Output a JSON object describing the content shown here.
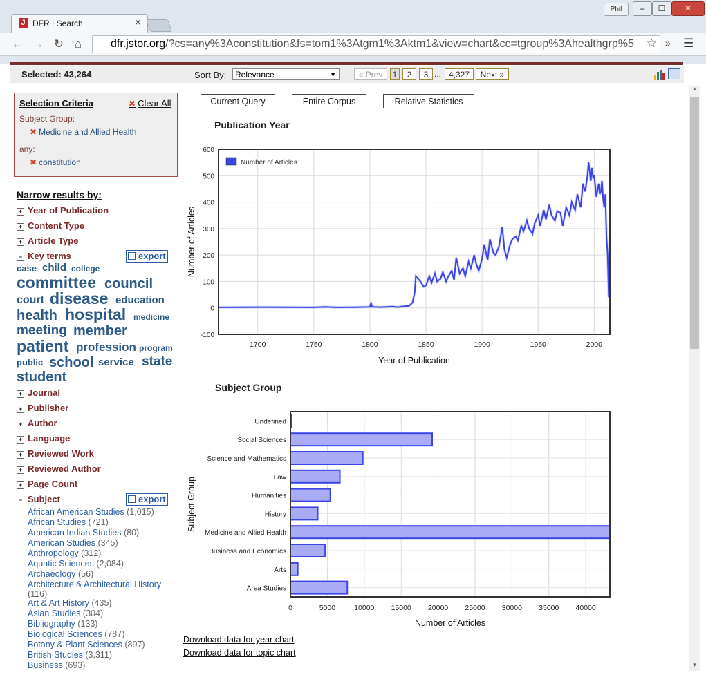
{
  "browser": {
    "tab_favicon": "J",
    "tab_title": "DFR : Search",
    "user_badge": "Phil",
    "url_host": "dfr.jstor.org",
    "url_rest": "/?cs=any%3Aconstitution&fs=tom1%3Atgm1%3Aktm1&view=chart&cc=tgroup%3Ahealthgrp%5",
    "extensions_label": "»",
    "icons": {
      "back": "arrow-left-icon",
      "forward": "arrow-right-icon",
      "reload": "reload-icon",
      "home": "home-icon",
      "star": "star-icon",
      "menu": "hamburger-icon"
    }
  },
  "header": {
    "selected_label": "Selected: 43,264",
    "sort_label": "Sort By:",
    "sort_value": "Relevance",
    "pagination": {
      "prev": "« Prev",
      "pages": [
        "1",
        "2",
        "3"
      ],
      "ellipsis": "...",
      "last": "4,327",
      "next": "Next »"
    }
  },
  "criteria": {
    "title": "Selection Criteria",
    "clear_all": "Clear All",
    "items": [
      {
        "label": "Subject Group:",
        "value": "Medicine and Allied Health"
      },
      {
        "label": "any:",
        "value": "constitution"
      }
    ]
  },
  "narrow": {
    "title": "Narrow results by:",
    "facets_top": [
      "Year of Publication",
      "Content Type",
      "Article Type"
    ],
    "key_terms": "Key terms",
    "export_label": "export",
    "keywords": [
      {
        "text": "case",
        "size": 13
      },
      {
        "text": "child",
        "size": 15
      },
      {
        "text": "college",
        "size": 12
      },
      {
        "text": "committee",
        "size": 23
      },
      {
        "text": "council",
        "size": 20
      },
      {
        "text": "court",
        "size": 16
      },
      {
        "text": "disease",
        "size": 23
      },
      {
        "text": "education",
        "size": 15
      },
      {
        "text": "health",
        "size": 20
      },
      {
        "text": "hospital",
        "size": 23
      },
      {
        "text": "medicine",
        "size": 12
      },
      {
        "text": "meeting",
        "size": 19
      },
      {
        "text": "member",
        "size": 20
      },
      {
        "text": "patient",
        "size": 23
      },
      {
        "text": "profession",
        "size": 17
      },
      {
        "text": "program",
        "size": 12
      },
      {
        "text": "public",
        "size": 13
      },
      {
        "text": "school",
        "size": 20
      },
      {
        "text": "service",
        "size": 15
      },
      {
        "text": "state",
        "size": 19
      },
      {
        "text": "student",
        "size": 20
      }
    ],
    "facets_bottom": [
      "Journal",
      "Publisher",
      "Author",
      "Language",
      "Reviewed Work",
      "Reviewed Author",
      "Page Count"
    ],
    "subject": "Subject",
    "subjects": [
      {
        "name": "African American Studies",
        "count": "(1,015)"
      },
      {
        "name": "African Studies",
        "count": "(721)"
      },
      {
        "name": "American Indian Studies",
        "count": "(80)"
      },
      {
        "name": "American Studies",
        "count": "(345)"
      },
      {
        "name": "Anthropology",
        "count": "(312)"
      },
      {
        "name": "Aquatic Sciences",
        "count": "(2,084)"
      },
      {
        "name": "Archaeology",
        "count": "(56)"
      },
      {
        "name": "Architecture & Architectural History",
        "count": "(116)"
      },
      {
        "name": "Art & Art History",
        "count": "(435)"
      },
      {
        "name": "Asian Studies",
        "count": "(304)"
      },
      {
        "name": "Bibliography",
        "count": "(133)"
      },
      {
        "name": "Biological Sciences",
        "count": "(787)"
      },
      {
        "name": "Botany & Plant Sciences",
        "count": "(897)"
      },
      {
        "name": "British Studies",
        "count": "(3,311)"
      },
      {
        "name": "Business",
        "count": "(693)"
      }
    ]
  },
  "tabs": [
    "Current Query",
    "Entire Corpus",
    "Relative Statistics"
  ],
  "downloads": [
    "Download data for year chart",
    "Download data for topic chart"
  ],
  "colors": {
    "accent": "#3b44e6",
    "bar_fill": "#a9abf5",
    "brand_red": "#7a2e2c"
  },
  "chart_data": [
    {
      "type": "line",
      "title": "Publication Year",
      "xlabel": "Year of Publication",
      "ylabel": "Number of Articles",
      "xlim": [
        1665,
        2014
      ],
      "ylim": [
        -100,
        600
      ],
      "xticks": [
        1700,
        1750,
        1800,
        1850,
        1900,
        1950,
        2000
      ],
      "yticks": [
        -100,
        0,
        100,
        200,
        300,
        400,
        500,
        600
      ],
      "grid": true,
      "legend": "top-left",
      "series": [
        {
          "name": "Number of Articles",
          "x": [
            1665,
            1700,
            1750,
            1760,
            1770,
            1790,
            1800,
            1801,
            1802,
            1810,
            1820,
            1825,
            1830,
            1835,
            1838,
            1840,
            1841,
            1843,
            1845,
            1848,
            1850,
            1853,
            1855,
            1858,
            1860,
            1863,
            1865,
            1868,
            1870,
            1873,
            1875,
            1877,
            1880,
            1883,
            1885,
            1888,
            1890,
            1893,
            1895,
            1897,
            1900,
            1902,
            1905,
            1907,
            1910,
            1912,
            1915,
            1918,
            1920,
            1922,
            1925,
            1927,
            1930,
            1932,
            1935,
            1937,
            1940,
            1942,
            1945,
            1947,
            1950,
            1952,
            1955,
            1957,
            1960,
            1962,
            1965,
            1967,
            1970,
            1972,
            1975,
            1978,
            1980,
            1983,
            1985,
            1988,
            1990,
            1992,
            1994,
            1995,
            1997,
            1998,
            1999,
            2000,
            2002,
            2004,
            2005,
            2006,
            2007,
            2008,
            2009,
            2010,
            2011,
            2012,
            2013,
            2014
          ],
          "y": [
            2,
            3,
            2,
            4,
            2,
            3,
            4,
            18,
            4,
            3,
            5,
            3,
            6,
            8,
            20,
            60,
            120,
            110,
            100,
            80,
            85,
            120,
            95,
            130,
            100,
            110,
            135,
            100,
            120,
            140,
            105,
            190,
            130,
            150,
            120,
            175,
            150,
            200,
            165,
            140,
            185,
            240,
            180,
            260,
            210,
            200,
            230,
            305,
            220,
            190,
            240,
            260,
            270,
            255,
            310,
            290,
            330,
            300,
            280,
            320,
            350,
            310,
            370,
            335,
            390,
            350,
            330,
            365,
            360,
            310,
            380,
            350,
            400,
            370,
            430,
            380,
            470,
            440,
            500,
            550,
            480,
            530,
            490,
            500,
            420,
            470,
            430,
            440,
            480,
            410,
            380,
            430,
            270,
            200,
            40,
            70
          ]
        }
      ]
    },
    {
      "type": "bar",
      "orientation": "horizontal",
      "title": "Subject Group",
      "xlabel": "Number of Articles",
      "ylabel": "Subject Group",
      "xlim": [
        0,
        43264
      ],
      "xticks": [
        0,
        5000,
        10000,
        15000,
        20000,
        25000,
        30000,
        35000,
        40000
      ],
      "grid": true,
      "categories": [
        "Undefined",
        "Social Sciences",
        "Science and Mathematics",
        "Law",
        "Humanities",
        "History",
        "Medicine and Allied Health",
        "Business and Economics",
        "Arts",
        "Area Studies"
      ],
      "values": [
        150,
        19200,
        9800,
        6700,
        5400,
        3700,
        43264,
        4700,
        1000,
        7700
      ]
    }
  ]
}
